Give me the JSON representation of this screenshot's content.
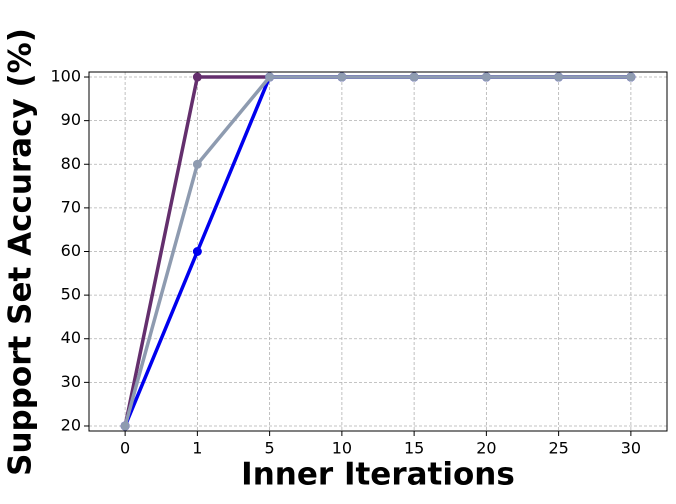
{
  "chart_data": {
    "type": "line",
    "xlabel": "Inner Iterations",
    "ylabel": "Support Set Accuracy (%)",
    "categories": [
      "0",
      "1",
      "5",
      "10",
      "15",
      "20",
      "25",
      "30"
    ],
    "series": [
      {
        "color": "#642f6d",
        "values": [
          20,
          100,
          100,
          100,
          100,
          100,
          100,
          100
        ]
      },
      {
        "color": "#0000ee",
        "values": [
          20,
          60,
          100,
          100,
          100,
          100,
          100,
          100
        ]
      },
      {
        "color": "#8e9bb0",
        "values": [
          20,
          80,
          100,
          100,
          100,
          100,
          100,
          100
        ]
      }
    ],
    "ylim": [
      18.85,
      101.15
    ],
    "yticks": [
      20,
      30,
      40,
      50,
      60,
      70,
      80,
      90,
      100
    ],
    "grid": true
  }
}
